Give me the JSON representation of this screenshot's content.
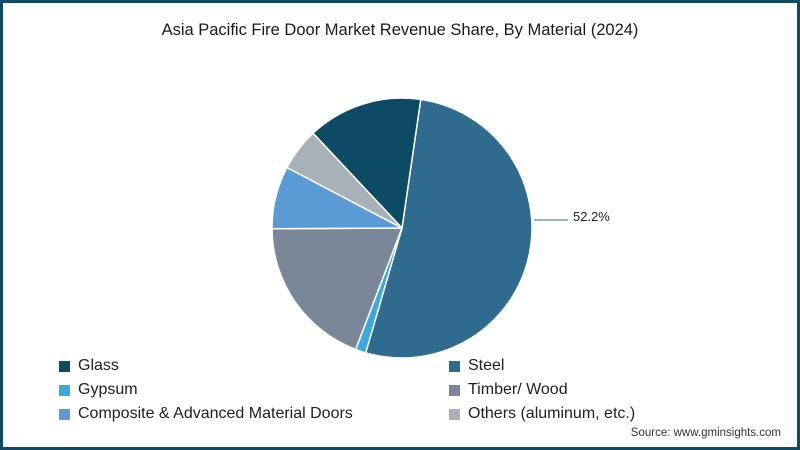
{
  "title": "Asia Pacific Fire Door Market Revenue Share, By Material (2024)",
  "source": "Source: www.gminsights.com",
  "data_label": "52.2%",
  "legend": [
    {
      "label": "Glass",
      "color": "#0d4a63"
    },
    {
      "label": "Steel",
      "color": "#2e6b8e"
    },
    {
      "label": "Gypsum",
      "color": "#3aa9e0"
    },
    {
      "label": "Timber/ Wood",
      "color": "#7a8799"
    },
    {
      "label": "Composite & Advanced Material Doors",
      "color": "#5b9bd5"
    },
    {
      "label": "Others (aluminum, etc.)",
      "color": "#a9b1b8"
    }
  ],
  "chart_data": {
    "type": "pie",
    "title": "Asia Pacific Fire Door Market Revenue Share, By Material (2024)",
    "categories": [
      "Steel",
      "Gypsum",
      "Timber/ Wood",
      "Composite & Advanced Material Doors",
      "Others (aluminum, etc.)",
      "Glass"
    ],
    "values": [
      52.2,
      1.3,
      19.1,
      7.8,
      5.3,
      14.3
    ],
    "colors": [
      "#2e6b8e",
      "#3aa9e0",
      "#7a8799",
      "#5b9bd5",
      "#a9b1b8",
      "#0d4a63"
    ],
    "start_angle_deg": 8.3,
    "direction": "clockwise",
    "labeled_values": {
      "Steel": "52.2%"
    },
    "legend_position": "bottom",
    "source": "Source: www.gminsights.com"
  }
}
